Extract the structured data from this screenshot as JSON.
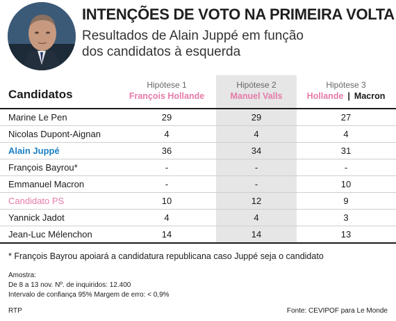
{
  "header": {
    "title": "INTENÇÕES DE VOTO NA PRIMEIRA VOLTA",
    "subtitle_line1": "Resultados de Alain Juppé em função",
    "subtitle_line2": "dos candidatos à esquerda"
  },
  "table": {
    "col_title": "Candidatos",
    "hypotheses": [
      {
        "label": "Hipótese 1",
        "candidate": "François Hollande"
      },
      {
        "label": "Hipótese 2",
        "candidate": "Manuel Valls"
      },
      {
        "label": "Hipótese 3",
        "candidate_a": "Hollande",
        "separator": "|",
        "candidate_b": "Macron"
      }
    ],
    "rows": [
      {
        "name": "Marine Le Pen",
        "values": [
          "29",
          "29",
          "27"
        ]
      },
      {
        "name": "Nicolas Dupont-Aignan",
        "values": [
          "4",
          "4",
          "4"
        ]
      },
      {
        "name": "Alain Juppé",
        "values": [
          "36",
          "34",
          "31"
        ]
      },
      {
        "name": "François Bayrou*",
        "values": [
          "-",
          "-",
          "-"
        ]
      },
      {
        "name": "Emmanuel Macron",
        "values": [
          "-",
          "-",
          "10"
        ]
      },
      {
        "name": "Candidato PS",
        "values": [
          "10",
          "12",
          "9"
        ]
      },
      {
        "name": "Yannick Jadot",
        "values": [
          "4",
          "4",
          "3"
        ]
      },
      {
        "name": "Jean-Luc Mélenchon",
        "values": [
          "14",
          "14",
          "13"
        ]
      }
    ]
  },
  "colors": {
    "highlight_blue": "#1b7fc4",
    "highlight_pink": "#e57aa8",
    "grey_column": "#e6e6e6"
  },
  "note": "* François Bayrou apoiará a candidatura republicana caso Juppé seja o candidato",
  "sample": {
    "line1": "Amostra:",
    "line2": "De 8 a 13 nov.   Nº. de inquiridos: 12.400",
    "line3": "Intervalo de confiança 95%    Margem de erro: < 0,9%"
  },
  "footer": {
    "left": "RTP",
    "right": "Fonte: CEVIPOF para Le Monde"
  },
  "chart_data": {
    "type": "table",
    "title": "INTENÇÕES DE VOTO NA PRIMEIRA VOLTA",
    "columns": [
      "Hipótese 1",
      "Hipótese 2",
      "Hipótese 3"
    ],
    "categories": [
      "Marine Le Pen",
      "Nicolas Dupont-Aignan",
      "Alain Juppé",
      "François Bayrou*",
      "Emmanuel Macron",
      "Candidato PS",
      "Yannick Jadot",
      "Jean-Luc Mélenchon"
    ],
    "series": [
      {
        "name": "Hipótese 1",
        "values": [
          29,
          4,
          36,
          null,
          null,
          10,
          4,
          14
        ]
      },
      {
        "name": "Hipótese 2",
        "values": [
          29,
          4,
          34,
          null,
          null,
          12,
          4,
          14
        ]
      },
      {
        "name": "Hipótese 3",
        "values": [
          27,
          4,
          31,
          null,
          10,
          9,
          3,
          13
        ]
      }
    ]
  }
}
